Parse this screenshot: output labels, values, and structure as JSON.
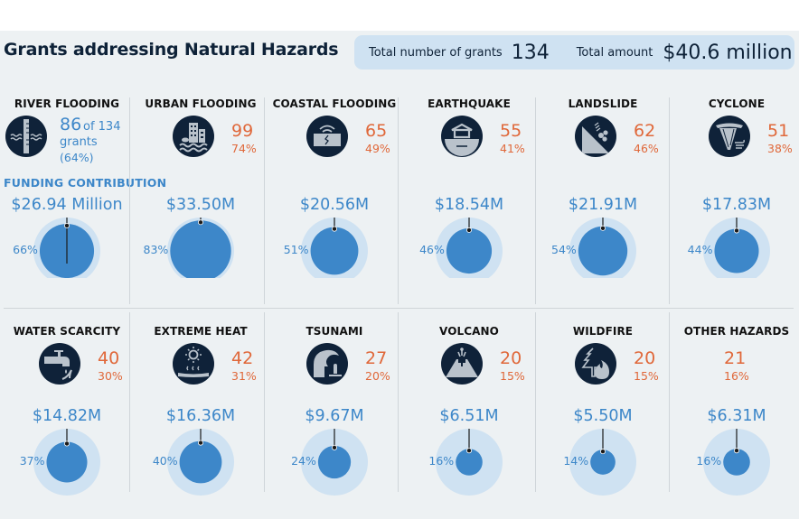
{
  "header": {
    "title": "Grants addressing Natural Hazards",
    "total_grants_label": "Total number of grants",
    "total_grants_value": "134",
    "total_amount_label": "Total amount",
    "total_amount_value": "$40.6 million"
  },
  "funding_label": "FUNDING CONTRIBUTION",
  "river_flooding_extra": {
    "of_total": "of 134",
    "grants_word": "grants",
    "pct_paren": "(64%)"
  },
  "colors": {
    "count_accent": "#e0683a",
    "funding_blue": "#3d87c9",
    "bubble_outer": "#cfe2f2",
    "icon_bg": "#0f2239",
    "icon_fg": "#b9c2cb"
  },
  "chart_data": {
    "type": "bubble-grid",
    "title": "Grants addressing Natural Hazards",
    "total_grants": 134,
    "total_amount_millions": 40.6,
    "hazards": [
      {
        "name": "RIVER FLOODING",
        "icon": "river-gauge-icon",
        "grants": 86,
        "grants_pct": "64%",
        "amount_label": "$26.94 Million",
        "amount_millions": 26.94,
        "funding_pct": 66,
        "funding_pct_label": "66%"
      },
      {
        "name": "URBAN FLOODING",
        "icon": "flooded-city-icon",
        "grants": 99,
        "grants_pct": "74%",
        "amount_label": "$33.50M",
        "amount_millions": 33.5,
        "funding_pct": 83,
        "funding_pct_label": "83%"
      },
      {
        "name": "COASTAL FLOODING",
        "icon": "coastal-wave-icon",
        "grants": 65,
        "grants_pct": "49%",
        "amount_label": "$20.56M",
        "amount_millions": 20.56,
        "funding_pct": 51,
        "funding_pct_label": "51%"
      },
      {
        "name": "EARTHQUAKE",
        "icon": "earthquake-house-icon",
        "grants": 55,
        "grants_pct": "41%",
        "amount_label": "$18.54M",
        "amount_millions": 18.54,
        "funding_pct": 46,
        "funding_pct_label": "46%"
      },
      {
        "name": "LANDSLIDE",
        "icon": "landslide-icon",
        "grants": 62,
        "grants_pct": "46%",
        "amount_label": "$21.91M",
        "amount_millions": 21.91,
        "funding_pct": 54,
        "funding_pct_label": "54%"
      },
      {
        "name": "CYCLONE",
        "icon": "cyclone-icon",
        "grants": 51,
        "grants_pct": "38%",
        "amount_label": "$17.83M",
        "amount_millions": 17.83,
        "funding_pct": 44,
        "funding_pct_label": "44%"
      },
      {
        "name": "WATER SCARCITY",
        "icon": "dripping-tap-icon",
        "grants": 40,
        "grants_pct": "30%",
        "amount_label": "$14.82M",
        "amount_millions": 14.82,
        "funding_pct": 37,
        "funding_pct_label": "37%"
      },
      {
        "name": "EXTREME HEAT",
        "icon": "sun-heat-icon",
        "grants": 42,
        "grants_pct": "31%",
        "amount_label": "$16.36M",
        "amount_millions": 16.36,
        "funding_pct": 40,
        "funding_pct_label": "40%"
      },
      {
        "name": "TSUNAMI",
        "icon": "tsunami-wave-icon",
        "grants": 27,
        "grants_pct": "20%",
        "amount_label": "$9.67M",
        "amount_millions": 9.67,
        "funding_pct": 24,
        "funding_pct_label": "24%"
      },
      {
        "name": "VOLCANO",
        "icon": "volcano-icon",
        "grants": 20,
        "grants_pct": "15%",
        "amount_label": "$6.51M",
        "amount_millions": 6.51,
        "funding_pct": 16,
        "funding_pct_label": "16%"
      },
      {
        "name": "WILDFIRE",
        "icon": "wildfire-tree-icon",
        "grants": 20,
        "grants_pct": "15%",
        "amount_label": "$5.50M",
        "amount_millions": 5.5,
        "funding_pct": 14,
        "funding_pct_label": "14%"
      },
      {
        "name": "OTHER HAZARDS",
        "icon": "",
        "grants": 21,
        "grants_pct": "16%",
        "amount_label": "$6.31M",
        "amount_millions": 6.31,
        "funding_pct": 16,
        "funding_pct_label": "16%"
      }
    ]
  }
}
